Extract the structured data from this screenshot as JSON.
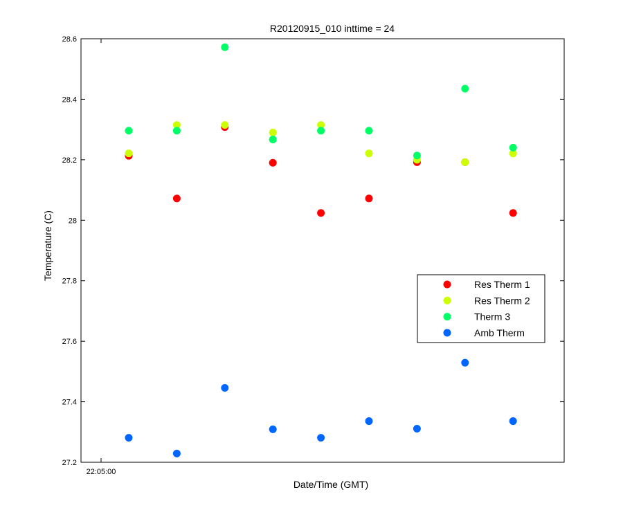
{
  "chart_data": {
    "type": "scatter",
    "title": "R20120915_010 inttime = 24",
    "xlabel": "Date/Time (GMT)",
    "ylabel": "Temperature (C)",
    "x_tick_labels": [
      "22:05:00"
    ],
    "ylim": [
      27.2,
      28.6
    ],
    "y_ticks": [
      27.2,
      27.4,
      27.6,
      27.8,
      28,
      28.2,
      28.4,
      28.6
    ],
    "y_tick_labels": [
      "27.2",
      "27.4",
      "27.6",
      "27.8",
      "28",
      "28.2",
      "28.4",
      "28.6"
    ],
    "grid": false,
    "legend_position": "right",
    "point_count": 9,
    "series": [
      {
        "name": "Res Therm 1",
        "color": "#ff0000",
        "values": [
          28.213,
          28.072,
          28.308,
          28.19,
          28.024,
          28.072,
          28.192,
          28.192,
          28.024
        ]
      },
      {
        "name": "Res Therm 2",
        "color": "#ccff00",
        "values": [
          28.221,
          28.315,
          28.315,
          28.29,
          28.315,
          28.221,
          28.2,
          28.192,
          28.221
        ]
      },
      {
        "name": "Therm 3",
        "color": "#00ff66",
        "values": [
          28.296,
          28.296,
          28.572,
          28.267,
          28.296,
          28.296,
          28.214,
          28.435,
          28.24
        ]
      },
      {
        "name": "Amb Therm",
        "color": "#0066ff",
        "values": [
          27.281,
          27.229,
          27.446,
          27.309,
          27.281,
          27.336,
          27.311,
          27.529,
          27.336
        ]
      }
    ]
  }
}
